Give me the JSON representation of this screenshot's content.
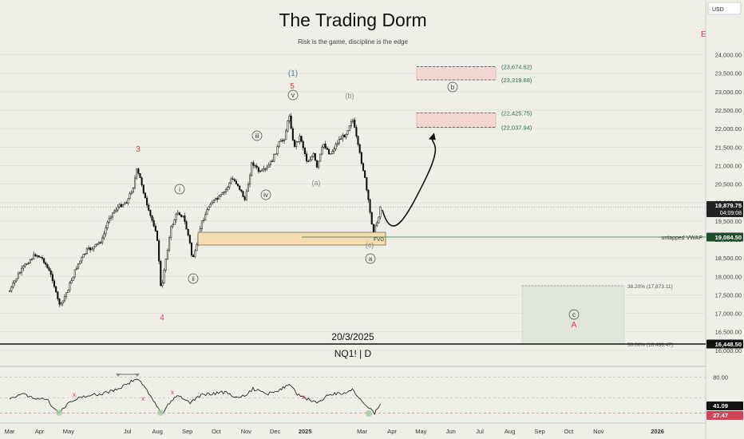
{
  "header": {
    "title": "The Trading Dorm",
    "subtitle": "Risk is the game, discipline is the edge",
    "date_caption": "20/3/2025",
    "symbol_caption": "NQ1! | D"
  },
  "axis": {
    "currency_label": "USD",
    "e_marker": "E"
  },
  "chart_data": [
    {
      "type": "candlestick",
      "title": "NQ1! | D",
      "currency": "USD",
      "ylim": [
        15650,
        25050
      ],
      "y_ticks": [
        16000,
        16500,
        17000,
        17500,
        18000,
        18500,
        19000,
        19500,
        20000,
        20500,
        21000,
        21500,
        22000,
        22500,
        23000,
        23500,
        24000
      ],
      "y_tick_labels": [
        "16,000.00",
        "16,500.00",
        "17,000.00",
        "17,500.00",
        "18,000.00",
        "18,500.00",
        "19,000.00",
        "19,500.00",
        "20,000.00",
        "20,500.00",
        "21,000.00",
        "21,500.00",
        "22,000.00",
        "22,500.00",
        "23,000.00",
        "23,500.00",
        "24,000.00"
      ],
      "x_ticks": [
        {
          "label": "Mar",
          "date": "2024-03"
        },
        {
          "label": "Apr",
          "date": "2024-04"
        },
        {
          "label": "May",
          "date": "2024-05"
        },
        {
          "label": "Jul",
          "date": "2024-07"
        },
        {
          "label": "Aug",
          "date": "2024-08"
        },
        {
          "label": "Sep",
          "date": "2024-09"
        },
        {
          "label": "Oct",
          "date": "2024-10"
        },
        {
          "label": "Nov",
          "date": "2024-11"
        },
        {
          "label": "Dec",
          "date": "2024-12"
        },
        {
          "label": "2025",
          "date": "2025-01"
        },
        {
          "label": "Mar",
          "date": "2025-03"
        },
        {
          "label": "Apr",
          "date": "2025-04"
        },
        {
          "label": "May",
          "date": "2025-05"
        },
        {
          "label": "Jun",
          "date": "2025-06"
        },
        {
          "label": "Jul",
          "date": "2025-07"
        },
        {
          "label": "Aug",
          "date": "2025-08"
        },
        {
          "label": "Sep",
          "date": "2025-09"
        },
        {
          "label": "Oct",
          "date": "2025-10"
        },
        {
          "label": "Nov",
          "date": "2025-11"
        },
        {
          "label": "2026",
          "date": "2026-01"
        }
      ],
      "price_path": [
        [
          "2024-03-01",
          17600
        ],
        [
          "2024-03-10",
          18050
        ],
        [
          "2024-03-20",
          18400
        ],
        [
          "2024-03-28",
          18600
        ],
        [
          "2024-04-05",
          18450
        ],
        [
          "2024-04-15",
          17900
        ],
        [
          "2024-04-19",
          17400
        ],
        [
          "2024-04-23",
          17200
        ],
        [
          "2024-05-01",
          17700
        ],
        [
          "2024-05-10",
          18300
        ],
        [
          "2024-05-20",
          18700
        ],
        [
          "2024-05-28",
          18800
        ],
        [
          "2024-06-05",
          19000
        ],
        [
          "2024-06-12",
          19600
        ],
        [
          "2024-06-20",
          19850
        ],
        [
          "2024-07-01",
          20050
        ],
        [
          "2024-07-08",
          20500
        ],
        [
          "2024-07-10",
          20900
        ],
        [
          "2024-07-15",
          20600
        ],
        [
          "2024-07-22",
          19800
        ],
        [
          "2024-07-30",
          19300
        ],
        [
          "2024-08-02",
          18700
        ],
        [
          "2024-08-05",
          17500
        ],
        [
          "2024-08-08",
          18200
        ],
        [
          "2024-08-15",
          19300
        ],
        [
          "2024-08-22",
          19750
        ],
        [
          "2024-08-28",
          19600
        ],
        [
          "2024-09-03",
          19000
        ],
        [
          "2024-09-06",
          18480
        ],
        [
          "2024-09-10",
          18700
        ],
        [
          "2024-09-15",
          19400
        ],
        [
          "2024-09-25",
          20000
        ],
        [
          "2024-10-03",
          20100
        ],
        [
          "2024-10-10",
          20300
        ],
        [
          "2024-10-17",
          20650
        ],
        [
          "2024-10-23",
          20500
        ],
        [
          "2024-10-31",
          20050
        ],
        [
          "2024-11-07",
          21100
        ],
        [
          "2024-11-15",
          20800
        ],
        [
          "2024-11-22",
          20900
        ],
        [
          "2024-11-29",
          21200
        ],
        [
          "2024-12-05",
          21600
        ],
        [
          "2024-12-10",
          21700
        ],
        [
          "2024-12-16",
          22400
        ],
        [
          "2024-12-20",
          21500
        ],
        [
          "2024-12-27",
          21800
        ],
        [
          "2025-01-03",
          21100
        ],
        [
          "2025-01-10",
          21300
        ],
        [
          "2025-01-13",
          20900
        ],
        [
          "2025-01-20",
          21600
        ],
        [
          "2025-01-27",
          21300
        ],
        [
          "2025-02-05",
          21700
        ],
        [
          "2025-02-12",
          21850
        ],
        [
          "2025-02-19",
          22300
        ],
        [
          "2025-02-25",
          21500
        ],
        [
          "2025-03-03",
          20800
        ],
        [
          "2025-03-10",
          19600
        ],
        [
          "2025-03-13",
          19200
        ],
        [
          "2025-03-17",
          19500
        ],
        [
          "2025-03-20",
          19880
        ]
      ],
      "projection_path": [
        [
          "2025-03-22",
          19800
        ],
        [
          "2025-04-01",
          19450
        ],
        [
          "2025-04-14",
          19600
        ],
        [
          "2025-05-05",
          20600
        ],
        [
          "2025-05-13",
          21800
        ]
      ],
      "current_price": {
        "label": "19,879.75",
        "countdown": "04:09:08"
      },
      "vwap": {
        "label": "untapped VWAP",
        "value_label": "19,084.50"
      },
      "black_line": {
        "value_label": "16,448.50"
      },
      "fvg_label": "FVG",
      "zones": [
        {
          "name": "target-zone-upper",
          "from": 23319.68,
          "to": 23674.62,
          "label_top": "(23,674.62)",
          "label_bottom": "(23,319.68)"
        },
        {
          "name": "target-zone-lower",
          "from": 22037.94,
          "to": 22425.75,
          "label_top": "(22,425.75)",
          "label_bottom": "(22,037.94)"
        },
        {
          "name": "fib-zone",
          "fib1": "38.20% (17,873.11)",
          "fib2": "50.00% (16,466.47)"
        }
      ],
      "wave_labels": [
        {
          "text": "(1)",
          "color": "#4a7f9a"
        },
        {
          "text": "5",
          "color": "#e0344a"
        },
        {
          "text": "3",
          "color": "#e0344a"
        },
        {
          "text": "4",
          "color": "#e0344a"
        },
        {
          "text": "A",
          "color": "#e0344a"
        },
        {
          "text": "(a)",
          "color": "#8a8a8a"
        },
        {
          "text": "(b)",
          "color": "#8a8a8a"
        },
        {
          "text": "(c)",
          "color": "#8a8a8a"
        },
        {
          "text": "i"
        },
        {
          "text": "ii"
        },
        {
          "text": "iii"
        },
        {
          "text": "iv"
        },
        {
          "text": "v"
        },
        {
          "text": "a"
        },
        {
          "text": "b"
        },
        {
          "text": "c"
        }
      ]
    },
    {
      "type": "line",
      "name": "oscillator-panel",
      "y_tick_labels": [
        "80.00"
      ],
      "value_label": "41.09",
      "lower_label": "27.47",
      "ylim": [
        20,
        90
      ],
      "path": [
        [
          "2024-03-01",
          50
        ],
        [
          "2024-03-15",
          55
        ],
        [
          "2024-03-25",
          51
        ],
        [
          "2024-04-10",
          45
        ],
        [
          "2024-04-20",
          27
        ],
        [
          "2024-05-01",
          42
        ],
        [
          "2024-05-15",
          52
        ],
        [
          "2024-06-05",
          56
        ],
        [
          "2024-06-20",
          62
        ],
        [
          "2024-07-03",
          72
        ],
        [
          "2024-07-10",
          78
        ],
        [
          "2024-07-18",
          68
        ],
        [
          "2024-07-28",
          45
        ],
        [
          "2024-08-05",
          26
        ],
        [
          "2024-08-12",
          40
        ],
        [
          "2024-08-22",
          55
        ],
        [
          "2024-09-04",
          41
        ],
        [
          "2024-09-12",
          52
        ],
        [
          "2024-09-25",
          56
        ],
        [
          "2024-10-10",
          58
        ],
        [
          "2024-10-25",
          48
        ],
        [
          "2024-11-08",
          63
        ],
        [
          "2024-11-22",
          55
        ],
        [
          "2024-12-06",
          62
        ],
        [
          "2024-12-17",
          69
        ],
        [
          "2024-12-24",
          54
        ],
        [
          "2025-01-06",
          47
        ],
        [
          "2025-01-15",
          42
        ],
        [
          "2025-01-25",
          55
        ],
        [
          "2025-02-07",
          56
        ],
        [
          "2025-02-19",
          62
        ],
        [
          "2025-03-01",
          44
        ],
        [
          "2025-03-10",
          34
        ],
        [
          "2025-03-14",
          27
        ],
        [
          "2025-03-20",
          41
        ]
      ]
    }
  ]
}
